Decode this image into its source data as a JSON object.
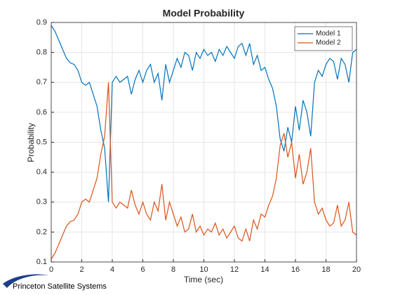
{
  "chart_data": {
    "type": "line",
    "title": "Model Probability",
    "xlabel": "Time (sec)",
    "ylabel": "Probability",
    "x": [
      0,
      0.25,
      0.5,
      0.75,
      1,
      1.25,
      1.5,
      1.75,
      2,
      2.25,
      2.5,
      2.75,
      3,
      3.25,
      3.5,
      3.75,
      4,
      4.25,
      4.5,
      4.75,
      5,
      5.25,
      5.5,
      5.75,
      6,
      6.25,
      6.5,
      6.75,
      7,
      7.25,
      7.5,
      7.75,
      8,
      8.25,
      8.5,
      8.75,
      9,
      9.25,
      9.5,
      9.75,
      10,
      10.25,
      10.5,
      10.75,
      11,
      11.25,
      11.5,
      11.75,
      12,
      12.25,
      12.5,
      12.75,
      13,
      13.25,
      13.5,
      13.75,
      14,
      14.25,
      14.5,
      14.75,
      15,
      15.25,
      15.5,
      15.75,
      16,
      16.25,
      16.5,
      16.75,
      17,
      17.25,
      17.5,
      17.75,
      18,
      18.25,
      18.5,
      18.75,
      19,
      19.25,
      19.5,
      19.75,
      20
    ],
    "series": [
      {
        "name": "Model 1",
        "color": "#0072bd",
        "values": [
          0.89,
          0.87,
          0.84,
          0.81,
          0.78,
          0.765,
          0.76,
          0.74,
          0.7,
          0.69,
          0.7,
          0.66,
          0.62,
          0.54,
          0.48,
          0.3,
          0.7,
          0.72,
          0.7,
          0.71,
          0.72,
          0.66,
          0.71,
          0.74,
          0.7,
          0.74,
          0.76,
          0.7,
          0.73,
          0.64,
          0.76,
          0.7,
          0.74,
          0.78,
          0.75,
          0.8,
          0.79,
          0.74,
          0.8,
          0.78,
          0.81,
          0.79,
          0.8,
          0.77,
          0.81,
          0.79,
          0.82,
          0.8,
          0.78,
          0.82,
          0.83,
          0.79,
          0.83,
          0.76,
          0.79,
          0.74,
          0.75,
          0.71,
          0.68,
          0.62,
          0.51,
          0.47,
          0.55,
          0.5,
          0.62,
          0.54,
          0.64,
          0.6,
          0.52,
          0.7,
          0.74,
          0.72,
          0.76,
          0.78,
          0.77,
          0.71,
          0.78,
          0.76,
          0.7,
          0.8,
          0.81
        ]
      },
      {
        "name": "Model 2",
        "color": "#d95319",
        "values": [
          0.11,
          0.13,
          0.16,
          0.19,
          0.22,
          0.235,
          0.24,
          0.26,
          0.3,
          0.31,
          0.3,
          0.34,
          0.38,
          0.46,
          0.52,
          0.7,
          0.3,
          0.28,
          0.3,
          0.29,
          0.28,
          0.34,
          0.29,
          0.26,
          0.3,
          0.26,
          0.24,
          0.3,
          0.27,
          0.36,
          0.24,
          0.3,
          0.26,
          0.22,
          0.25,
          0.2,
          0.21,
          0.26,
          0.2,
          0.22,
          0.19,
          0.21,
          0.2,
          0.23,
          0.19,
          0.21,
          0.18,
          0.2,
          0.22,
          0.18,
          0.17,
          0.21,
          0.17,
          0.24,
          0.21,
          0.26,
          0.25,
          0.29,
          0.32,
          0.38,
          0.49,
          0.53,
          0.45,
          0.5,
          0.38,
          0.46,
          0.36,
          0.4,
          0.48,
          0.3,
          0.26,
          0.28,
          0.24,
          0.22,
          0.23,
          0.29,
          0.22,
          0.24,
          0.3,
          0.2,
          0.19
        ]
      }
    ],
    "xlim": [
      0,
      20
    ],
    "xticks": [
      0,
      2,
      4,
      6,
      8,
      10,
      12,
      14,
      16,
      18,
      20
    ],
    "ylim": [
      0.1,
      0.9
    ],
    "yticks": [
      0.1,
      0.2,
      0.3,
      0.4,
      0.5,
      0.6,
      0.7,
      0.8,
      0.9
    ],
    "grid": true,
    "legend": "northeast"
  },
  "logo": {
    "text": "Princeton Satellite Systems"
  }
}
